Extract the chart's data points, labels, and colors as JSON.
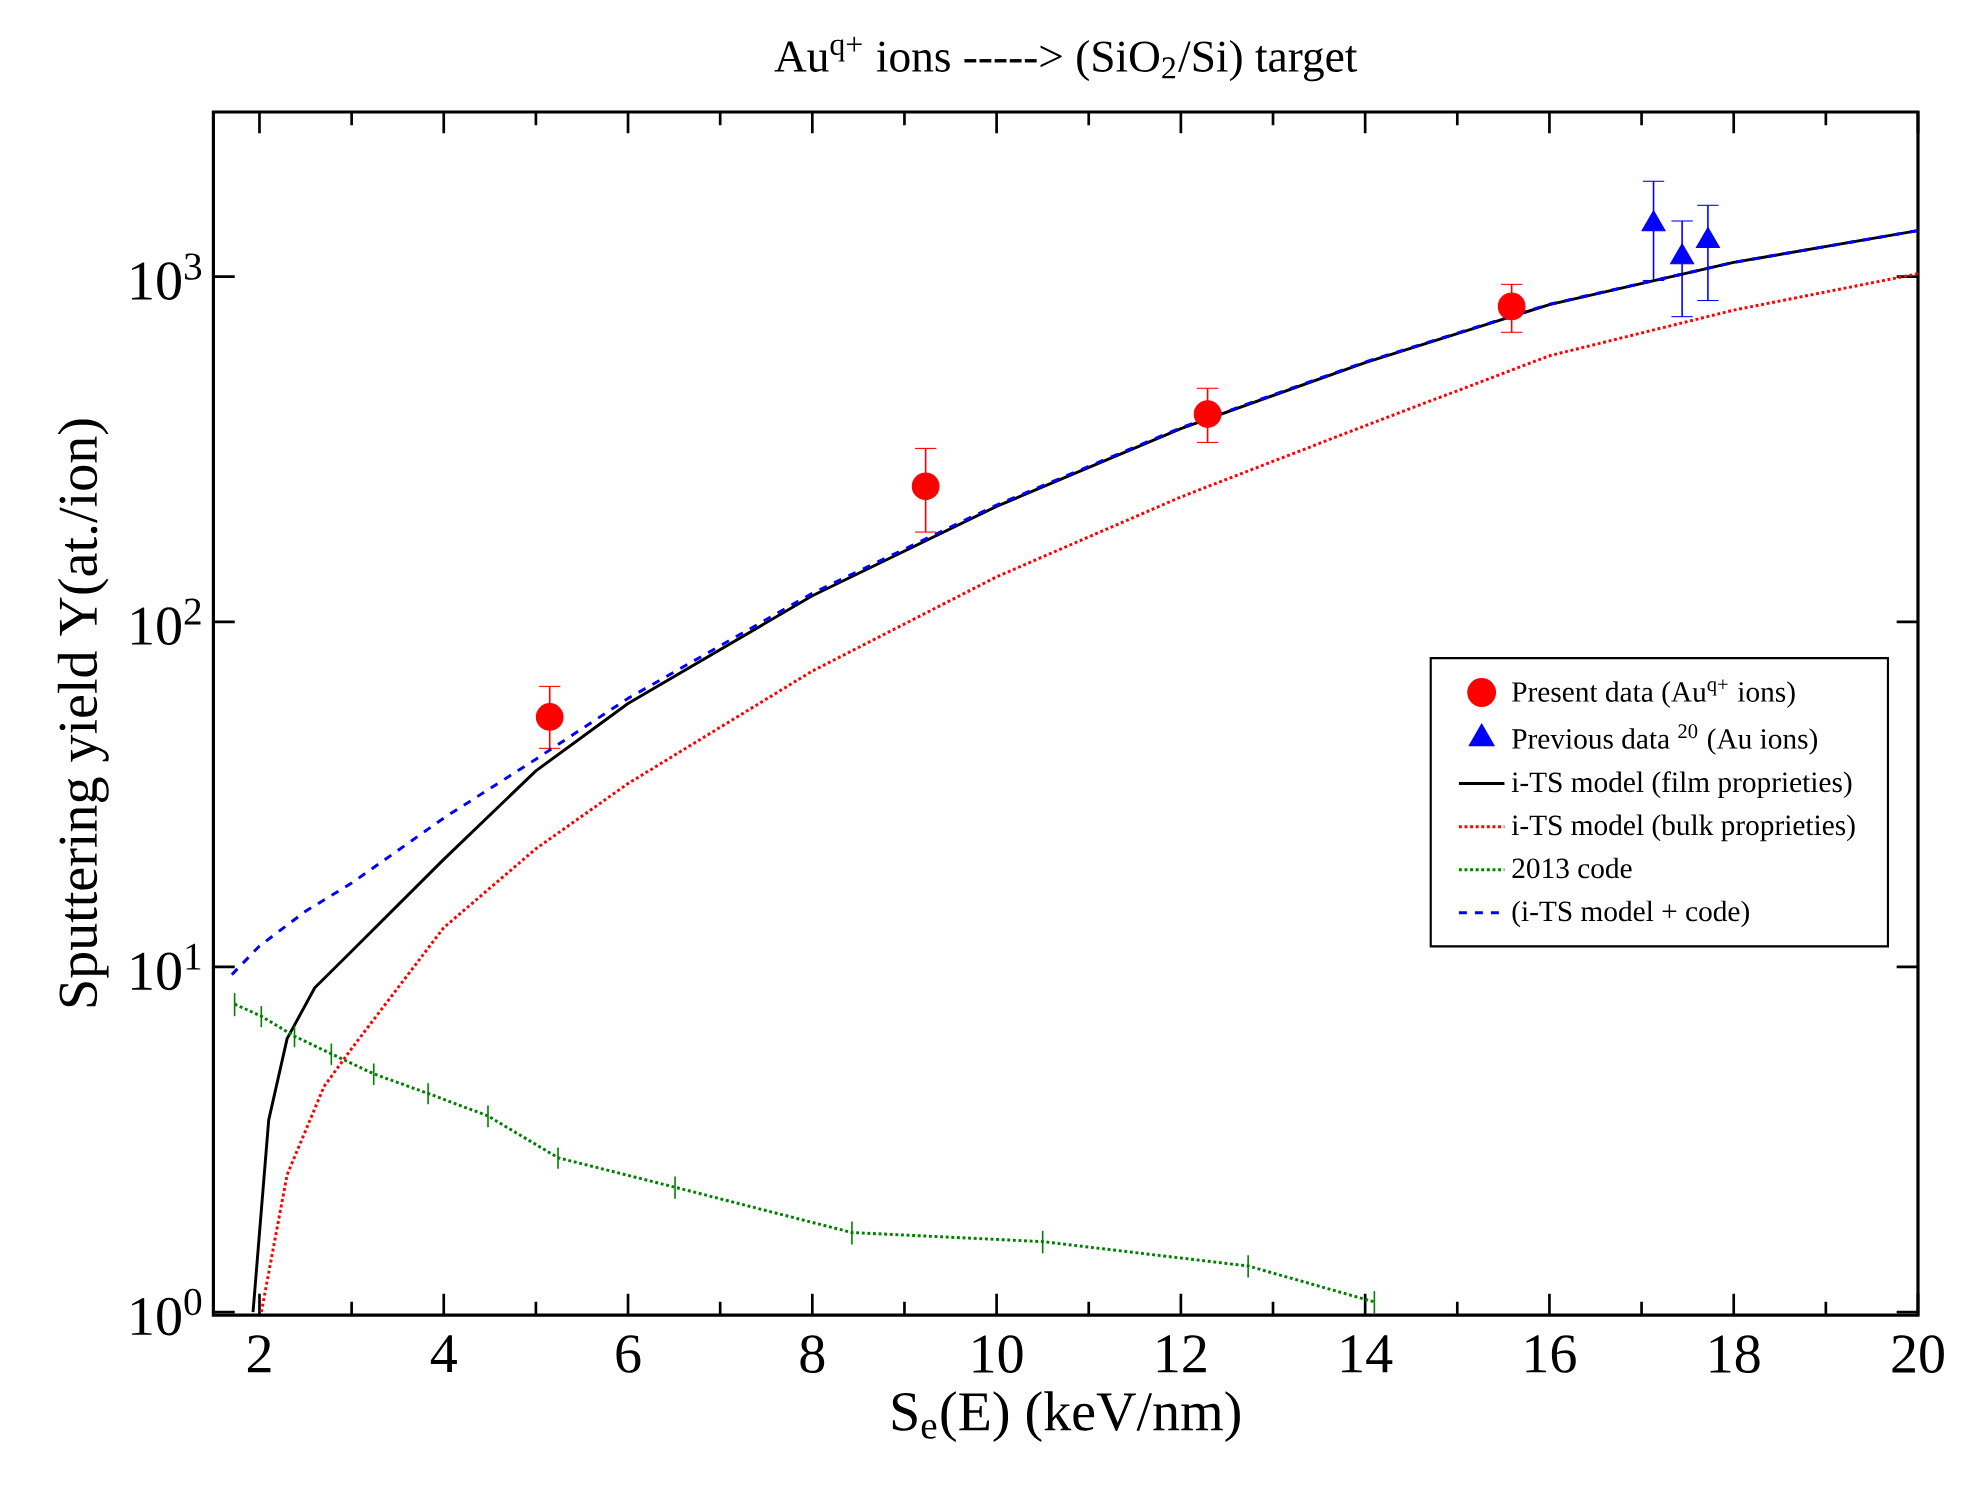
{
  "chart_data": {
    "type": "line",
    "title": "Au$^{q+}$ ions -----> (SiO$_{2}$/Si) target",
    "xlabel": "S$_{e}$(E) (keV/nm)",
    "ylabel": "Sputtering yield Y(at./ion)",
    "log": "y",
    "xlim": [
      1.5,
      20
    ],
    "ylim": [
      0.98,
      3000
    ],
    "xticks": [
      2,
      4,
      6,
      8,
      10,
      12,
      14,
      16,
      18,
      20
    ],
    "yticks": [
      {
        "value": 1,
        "label": "10$^{0}$"
      },
      {
        "value": 10,
        "label": "10$^{1}$"
      },
      {
        "value": 100,
        "label": "10$^{2}$"
      },
      {
        "value": 1000,
        "label": "10$^{3}$"
      }
    ],
    "legend": "right",
    "grid": false,
    "series": [
      {
        "name": "Present data (Au$^{q+}$ ions)",
        "type": "scatter",
        "marker": "circle",
        "color": "#ff0000",
        "x": [
          5.15,
          9.23,
          12.29,
          15.59
        ],
        "values": [
          53,
          247,
          400,
          820
        ],
        "errors": [
          [
            43,
            65
          ],
          [
            182,
            318
          ],
          [
            331,
            475
          ],
          [
            690,
            950
          ]
        ]
      },
      {
        "name": "Previous data $^{20}$ (Au ions)",
        "type": "scatter",
        "marker": "triangle",
        "color": "#0000ff",
        "x": [
          17.13,
          17.44,
          17.72
        ],
        "values": [
          1420,
          1140,
          1270
        ],
        "errors": [
          [
            975,
            1890
          ],
          [
            766,
            1450
          ],
          [
            853,
            1610
          ]
        ]
      },
      {
        "name": "i-TS model (film proprieties)",
        "line_style": "solid",
        "color": "#000000",
        "x": [
          1.93,
          2.1,
          2.3,
          2.6,
          3,
          4,
          5,
          6,
          8,
          10,
          12,
          14,
          16,
          18,
          20
        ],
        "values": [
          1,
          3.6,
          6.2,
          8.7,
          11.1,
          20.5,
          37,
          58,
          119,
          216,
          363,
          564,
          830,
          1100,
          1360
        ]
      },
      {
        "name": "i-TS model (bulk proprieties)",
        "line_style": "dotted",
        "color": "#ff0000",
        "x": [
          2.02,
          2.3,
          2.7,
          3,
          4,
          5,
          6,
          8,
          10,
          12,
          14,
          16,
          18,
          20
        ],
        "values": [
          1,
          2.5,
          4.5,
          5.8,
          13,
          22,
          34,
          72,
          135,
          230,
          370,
          590,
          800,
          1020
        ]
      },
      {
        "name": "2013 code",
        "line_style": "dotted",
        "color": "#008000",
        "x": [
          1.73,
          2.02,
          2.38,
          2.78,
          3.24,
          3.83,
          4.48,
          5.24,
          6.51,
          8.43,
          10.5,
          12.73,
          14.1
        ],
        "values": [
          7.8,
          7.2,
          6.3,
          5.6,
          4.9,
          4.3,
          3.7,
          2.8,
          2.3,
          1.7,
          1.6,
          1.36,
          1.07
        ],
        "errors": [
          0.6,
          0.5,
          0.45,
          0.4,
          0.35,
          0.3,
          0.27,
          0.2,
          0.17,
          0.13,
          0.12,
          0.1,
          0.08
        ]
      },
      {
        "name": "(i-TS model + code)",
        "line_style": "dashed",
        "color": "#0000ff",
        "x": [
          1.7,
          2,
          2.5,
          3,
          4,
          5,
          6,
          8,
          10,
          12,
          14,
          16,
          18,
          20
        ],
        "values": [
          9.5,
          11.5,
          14.5,
          17.5,
          27,
          40,
          60,
          121,
          218,
          365,
          566,
          832,
          1100,
          1360
        ]
      }
    ]
  }
}
